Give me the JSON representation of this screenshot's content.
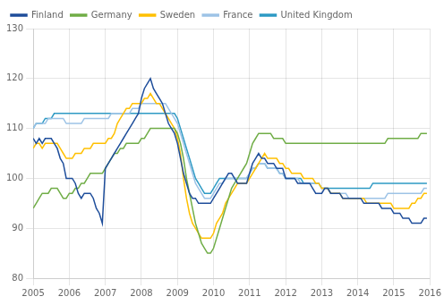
{
  "chart_data": {
    "type": "line",
    "xlim": [
      2005,
      2016
    ],
    "xticks": [
      2005,
      2006,
      2007,
      2008,
      2009,
      2010,
      2011,
      2012,
      2013,
      2014,
      2015,
      2016
    ],
    "ylim": [
      80,
      130
    ],
    "yticks": [
      80,
      90,
      100,
      110,
      120,
      130
    ],
    "grid": true,
    "legend": "upper left",
    "x": [
      2005,
      2005.0833333333333,
      2005.1666666666667,
      2005.25,
      2005.3333333333333,
      2005.4166666666667,
      2005.5,
      2005.5833333333333,
      2005.6666666666667,
      2005.75,
      2005.8333333333333,
      2005.9166666666667,
      2006,
      2006.0833333333333,
      2006.1666666666667,
      2006.25,
      2006.3333333333333,
      2006.4166666666667,
      2006.5,
      2006.5833333333333,
      2006.6666666666667,
      2006.75,
      2006.8333333333333,
      2006.9166666666667,
      2007,
      2007.0833333333333,
      2007.1666666666667,
      2007.25,
      2007.3333333333333,
      2007.4166666666667,
      2007.5,
      2007.5833333333333,
      2007.6666666666667,
      2007.75,
      2007.8333333333333,
      2007.9166666666667,
      2008,
      2008.0833333333333,
      2008.1666666666667,
      2008.25,
      2008.3333333333333,
      2008.4166666666667,
      2008.5,
      2008.5833333333333,
      2008.6666666666667,
      2008.75,
      2008.8333333333333,
      2008.9166666666667,
      2009,
      2009.0833333333333,
      2009.1666666666667,
      2009.25,
      2009.3333333333333,
      2009.4166666666667,
      2009.5,
      2009.5833333333333,
      2009.6666666666667,
      2009.75,
      2009.8333333333333,
      2009.9166666666667,
      2010,
      2010.0833333333333,
      2010.1666666666667,
      2010.25,
      2010.3333333333333,
      2010.4166666666667,
      2010.5,
      2010.5833333333333,
      2010.6666666666667,
      2010.75,
      2010.8333333333333,
      2010.9166666666667,
      2011,
      2011.0833333333333,
      2011.1666666666667,
      2011.25,
      2011.3333333333333,
      2011.4166666666667,
      2011.5,
      2011.5833333333333,
      2011.6666666666667,
      2011.75,
      2011.8333333333333,
      2011.9166666666667,
      2012,
      2012.0833333333333,
      2012.1666666666667,
      2012.25,
      2012.3333333333333,
      2012.4166666666667,
      2012.5,
      2012.5833333333333,
      2012.6666666666667,
      2012.75,
      2012.8333333333333,
      2012.9166666666667,
      2013,
      2013.0833333333333,
      2013.1666666666667,
      2013.25,
      2013.3333333333333,
      2013.4166666666667,
      2013.5,
      2013.5833333333333,
      2013.6666666666667,
      2013.75,
      2013.8333333333333,
      2013.9166666666667,
      2014,
      2014.0833333333333,
      2014.1666666666667,
      2014.25,
      2014.3333333333333,
      2014.4166666666667,
      2014.5,
      2014.5833333333333,
      2014.6666666666667,
      2014.75,
      2014.8333333333333,
      2014.9166666666667,
      2015,
      2015.0833333333333,
      2015.1666666666667,
      2015.25,
      2015.3333333333333,
      2015.4166666666667,
      2015.5,
      2015.5833333333333,
      2015.6666666666667,
      2015.75,
      2015.8333333333333,
      2015.9166666666667
    ],
    "series": [
      {
        "name": "Finland",
        "color": "#1f4e9b",
        "values": [
          108,
          107,
          108,
          107,
          108,
          108,
          108,
          107,
          106,
          104,
          103,
          100,
          100,
          100,
          99,
          97,
          96,
          97,
          97,
          97,
          96,
          94,
          93,
          91,
          102,
          103,
          104,
          105,
          106,
          107,
          108,
          109,
          110,
          111,
          112,
          113,
          116,
          118,
          119,
          120,
          118,
          117,
          116,
          115,
          113,
          111,
          110,
          109,
          107,
          104,
          101,
          99,
          97,
          96,
          96,
          95,
          95,
          95,
          95,
          95,
          96,
          97,
          98,
          99,
          100,
          101,
          101,
          100,
          99,
          99,
          99,
          99,
          101,
          103,
          104,
          105,
          104,
          104,
          103,
          103,
          103,
          102,
          102,
          102,
          100,
          100,
          100,
          100,
          99,
          99,
          99,
          99,
          99,
          98,
          97,
          97,
          97,
          98,
          98,
          97,
          97,
          97,
          97,
          96,
          96,
          96,
          96,
          96,
          96,
          96,
          95,
          95,
          95,
          95,
          95,
          95,
          94,
          94,
          94,
          94,
          93,
          93,
          93,
          92,
          92,
          92,
          91,
          91,
          91,
          91,
          92,
          92
        ]
      },
      {
        "name": "Germany",
        "color": "#70ad47",
        "values": [
          94,
          95,
          96,
          97,
          97,
          97,
          98,
          98,
          98,
          97,
          96,
          96,
          97,
          97,
          98,
          98,
          99,
          99,
          100,
          101,
          101,
          101,
          101,
          101,
          102,
          103,
          104,
          105,
          105,
          106,
          106,
          107,
          107,
          107,
          107,
          107,
          108,
          108,
          109,
          110,
          110,
          110,
          110,
          110,
          110,
          110,
          110,
          110,
          109,
          107,
          104,
          100,
          97,
          94,
          91,
          89,
          87,
          86,
          85,
          85,
          86,
          88,
          90,
          92,
          94,
          96,
          98,
          99,
          100,
          101,
          102,
          103,
          105,
          107,
          108,
          109,
          109,
          109,
          109,
          109,
          108,
          108,
          108,
          108,
          107,
          107,
          107,
          107,
          107,
          107,
          107,
          107,
          107,
          107,
          107,
          107,
          107,
          107,
          107,
          107,
          107,
          107,
          107,
          107,
          107,
          107,
          107,
          107,
          107,
          107,
          107,
          107,
          107,
          107,
          107,
          107,
          107,
          107,
          108,
          108,
          108,
          108,
          108,
          108,
          108,
          108,
          108,
          108,
          108,
          109,
          109,
          109
        ]
      },
      {
        "name": "Sweden",
        "color": "#ffc000",
        "values": [
          106,
          107,
          107,
          106,
          107,
          107,
          107,
          107,
          107,
          106,
          105,
          104,
          104,
          104,
          105,
          105,
          105,
          106,
          106,
          106,
          107,
          107,
          107,
          107,
          107,
          108,
          108,
          109,
          111,
          112,
          113,
          114,
          114,
          115,
          115,
          115,
          115,
          116,
          116,
          117,
          116,
          115,
          115,
          114,
          113,
          112,
          111,
          110,
          108,
          105,
          100,
          96,
          93,
          91,
          90,
          89,
          88,
          88,
          88,
          88,
          89,
          91,
          92,
          93,
          95,
          96,
          97,
          98,
          99,
          99,
          99,
          99,
          100,
          101,
          102,
          103,
          104,
          105,
          104,
          104,
          104,
          104,
          103,
          103,
          102,
          102,
          101,
          101,
          101,
          101,
          100,
          100,
          100,
          100,
          99,
          99,
          98,
          98,
          98,
          97,
          97,
          97,
          97,
          96,
          96,
          96,
          96,
          96,
          96,
          96,
          96,
          95,
          95,
          95,
          95,
          95,
          95,
          95,
          95,
          95,
          94,
          94,
          94,
          94,
          94,
          94,
          95,
          95,
          96,
          96,
          97,
          97
        ]
      },
      {
        "name": "France",
        "color": "#9dc3e6",
        "values": [
          110,
          111,
          111,
          111,
          111,
          112,
          112,
          112,
          112,
          112,
          112,
          111,
          111,
          111,
          111,
          111,
          111,
          112,
          112,
          112,
          112,
          112,
          112,
          112,
          112,
          112,
          113,
          113,
          113,
          113,
          113,
          113,
          113,
          114,
          114,
          114,
          115,
          115,
          115,
          115,
          115,
          115,
          115,
          115,
          115,
          114,
          113,
          112,
          111,
          109,
          107,
          105,
          103,
          101,
          99,
          98,
          97,
          96,
          96,
          96,
          97,
          98,
          99,
          99,
          100,
          100,
          100,
          100,
          100,
          100,
          100,
          100,
          101,
          102,
          102,
          103,
          103,
          103,
          102,
          102,
          102,
          102,
          101,
          101,
          100,
          100,
          100,
          100,
          100,
          99,
          99,
          99,
          99,
          99,
          99,
          99,
          98,
          98,
          98,
          97,
          97,
          97,
          97,
          97,
          97,
          96,
          96,
          96,
          96,
          96,
          96,
          96,
          96,
          96,
          96,
          96,
          96,
          96,
          97,
          97,
          97,
          97,
          97,
          97,
          97,
          97,
          97,
          97,
          97,
          97,
          98,
          98
        ]
      },
      {
        "name": "United Kingdom",
        "color": "#2e9ac4",
        "values": [
          110,
          111,
          111,
          111,
          112,
          112,
          112,
          113,
          113,
          113,
          113,
          113,
          113,
          113,
          113,
          113,
          113,
          113,
          113,
          113,
          113,
          113,
          113,
          113,
          113,
          113,
          113,
          113,
          113,
          113,
          113,
          113,
          113,
          113,
          113,
          113,
          113,
          113,
          113,
          113,
          113,
          113,
          113,
          113,
          113,
          113,
          113,
          113,
          112,
          110,
          108,
          106,
          104,
          102,
          100,
          99,
          98,
          97,
          97,
          97,
          98,
          99,
          100,
          100,
          100,
          100,
          100,
          100,
          100,
          100,
          100,
          100,
          101,
          102,
          102,
          103,
          103,
          103,
          102,
          102,
          102,
          102,
          101,
          101,
          100,
          100,
          100,
          100,
          100,
          100,
          99,
          99,
          99,
          99,
          99,
          99,
          98,
          98,
          98,
          98,
          98,
          98,
          98,
          98,
          98,
          98,
          98,
          98,
          98,
          98,
          98,
          98,
          98,
          99,
          99,
          99,
          99,
          99,
          99,
          99,
          99,
          99,
          99,
          99,
          99,
          99,
          99,
          99,
          99,
          99,
          99,
          99
        ]
      }
    ]
  }
}
